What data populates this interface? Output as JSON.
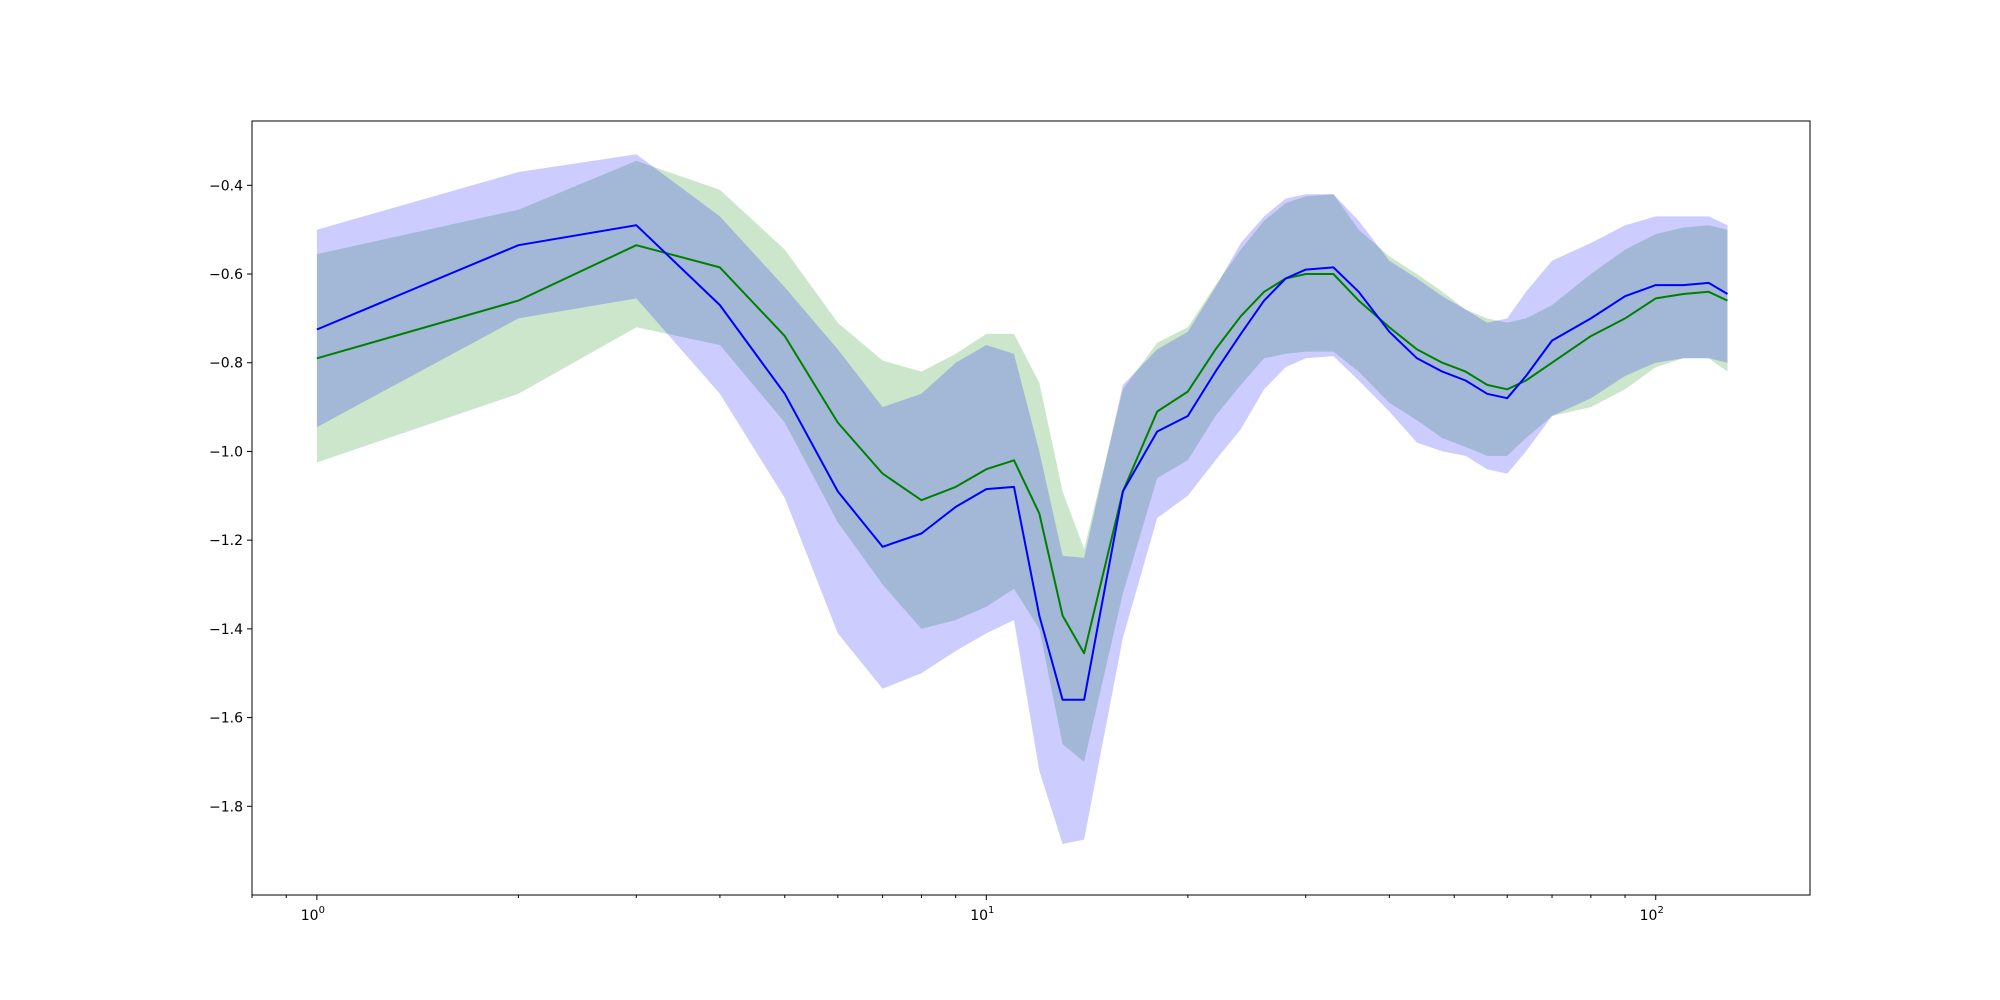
{
  "chart_data": {
    "type": "line",
    "title": "",
    "xlabel": "",
    "ylabel": "",
    "xscale": "log",
    "xlim": [
      0.8,
      170
    ],
    "ylim": [
      -2.0,
      -0.255
    ],
    "grid": false,
    "x_ticks": [
      {
        "value": 1,
        "base": "10",
        "exp": "0"
      },
      {
        "value": 10,
        "base": "10",
        "exp": "1"
      },
      {
        "value": 100,
        "base": "10",
        "exp": "2"
      }
    ],
    "y_ticks": [
      {
        "value": -0.4,
        "label": "−0.4"
      },
      {
        "value": -0.6,
        "label": "−0.6"
      },
      {
        "value": -0.8,
        "label": "−0.8"
      },
      {
        "value": -1.0,
        "label": "−1.0"
      },
      {
        "value": -1.2,
        "label": "−1.2"
      },
      {
        "value": -1.4,
        "label": "−1.4"
      },
      {
        "value": -1.6,
        "label": "−1.6"
      },
      {
        "value": -1.8,
        "label": "−1.8"
      }
    ],
    "colors": {
      "green_line": "#008000",
      "green_band": "#008000",
      "blue_line": "#0000ff",
      "blue_band": "#0000ff",
      "band_opacity": 0.2
    },
    "series": [
      {
        "color": "green",
        "x": [
          1,
          2,
          3,
          4,
          5,
          6,
          7,
          8,
          9,
          10,
          11,
          12,
          13,
          14,
          16,
          18,
          20,
          22,
          24,
          26,
          28,
          30,
          33,
          36,
          40,
          44,
          48,
          52,
          56,
          60,
          64,
          70,
          80,
          90,
          100,
          110,
          120,
          128
        ],
        "y": [
          -0.79,
          -0.66,
          -0.535,
          -0.585,
          -0.74,
          -0.935,
          -1.05,
          -1.11,
          -1.08,
          -1.04,
          -1.02,
          -1.14,
          -1.37,
          -1.455,
          -1.09,
          -0.91,
          -0.865,
          -0.77,
          -0.695,
          -0.64,
          -0.61,
          -0.6,
          -0.6,
          -0.66,
          -0.72,
          -0.77,
          -0.8,
          -0.82,
          -0.85,
          -0.86,
          -0.84,
          -0.8,
          -0.74,
          -0.7,
          -0.655,
          -0.645,
          -0.64,
          -0.66
        ],
        "lower": [
          -1.025,
          -0.87,
          -0.72,
          -0.76,
          -0.935,
          -1.16,
          -1.3,
          -1.4,
          -1.38,
          -1.35,
          -1.31,
          -1.4,
          -1.66,
          -1.7,
          -1.32,
          -1.06,
          -1.02,
          -0.92,
          -0.85,
          -0.79,
          -0.78,
          -0.775,
          -0.775,
          -0.82,
          -0.89,
          -0.93,
          -0.97,
          -0.99,
          -1.01,
          -1.01,
          -0.97,
          -0.92,
          -0.9,
          -0.86,
          -0.81,
          -0.79,
          -0.79,
          -0.82
        ],
        "upper": [
          -0.555,
          -0.455,
          -0.345,
          -0.41,
          -0.545,
          -0.71,
          -0.795,
          -0.82,
          -0.78,
          -0.735,
          -0.735,
          -0.845,
          -1.09,
          -1.22,
          -0.86,
          -0.755,
          -0.72,
          -0.625,
          -0.545,
          -0.48,
          -0.44,
          -0.425,
          -0.42,
          -0.5,
          -0.56,
          -0.6,
          -0.64,
          -0.68,
          -0.7,
          -0.71,
          -0.7,
          -0.67,
          -0.6,
          -0.545,
          -0.51,
          -0.495,
          -0.49,
          -0.5
        ]
      },
      {
        "color": "blue",
        "x": [
          1,
          2,
          3,
          4,
          5,
          6,
          7,
          8,
          9,
          10,
          11,
          12,
          13,
          14,
          16,
          18,
          20,
          22,
          24,
          26,
          28,
          30,
          33,
          36,
          40,
          44,
          48,
          52,
          56,
          60,
          64,
          70,
          80,
          90,
          100,
          110,
          120,
          128
        ],
        "y": [
          -0.725,
          -0.535,
          -0.49,
          -0.67,
          -0.87,
          -1.09,
          -1.215,
          -1.185,
          -1.125,
          -1.085,
          -1.08,
          -1.37,
          -1.56,
          -1.56,
          -1.09,
          -0.955,
          -0.92,
          -0.82,
          -0.735,
          -0.66,
          -0.61,
          -0.59,
          -0.585,
          -0.64,
          -0.73,
          -0.79,
          -0.82,
          -0.84,
          -0.87,
          -0.88,
          -0.83,
          -0.75,
          -0.7,
          -0.65,
          -0.625,
          -0.625,
          -0.62,
          -0.645
        ],
        "lower": [
          -0.945,
          -0.7,
          -0.655,
          -0.87,
          -1.105,
          -1.41,
          -1.535,
          -1.5,
          -1.45,
          -1.41,
          -1.38,
          -1.72,
          -1.885,
          -1.875,
          -1.42,
          -1.15,
          -1.1,
          -1.02,
          -0.95,
          -0.86,
          -0.81,
          -0.79,
          -0.785,
          -0.84,
          -0.91,
          -0.98,
          -1.0,
          -1.01,
          -1.04,
          -1.05,
          -1.0,
          -0.92,
          -0.88,
          -0.83,
          -0.8,
          -0.79,
          -0.79,
          -0.8
        ],
        "upper": [
          -0.5,
          -0.37,
          -0.33,
          -0.47,
          -0.63,
          -0.77,
          -0.9,
          -0.87,
          -0.8,
          -0.76,
          -0.78,
          -1.0,
          -1.235,
          -1.24,
          -0.85,
          -0.77,
          -0.73,
          -0.63,
          -0.53,
          -0.47,
          -0.43,
          -0.42,
          -0.42,
          -0.48,
          -0.57,
          -0.61,
          -0.65,
          -0.68,
          -0.71,
          -0.7,
          -0.64,
          -0.57,
          -0.53,
          -0.49,
          -0.47,
          -0.47,
          -0.47,
          -0.49
        ]
      }
    ]
  }
}
